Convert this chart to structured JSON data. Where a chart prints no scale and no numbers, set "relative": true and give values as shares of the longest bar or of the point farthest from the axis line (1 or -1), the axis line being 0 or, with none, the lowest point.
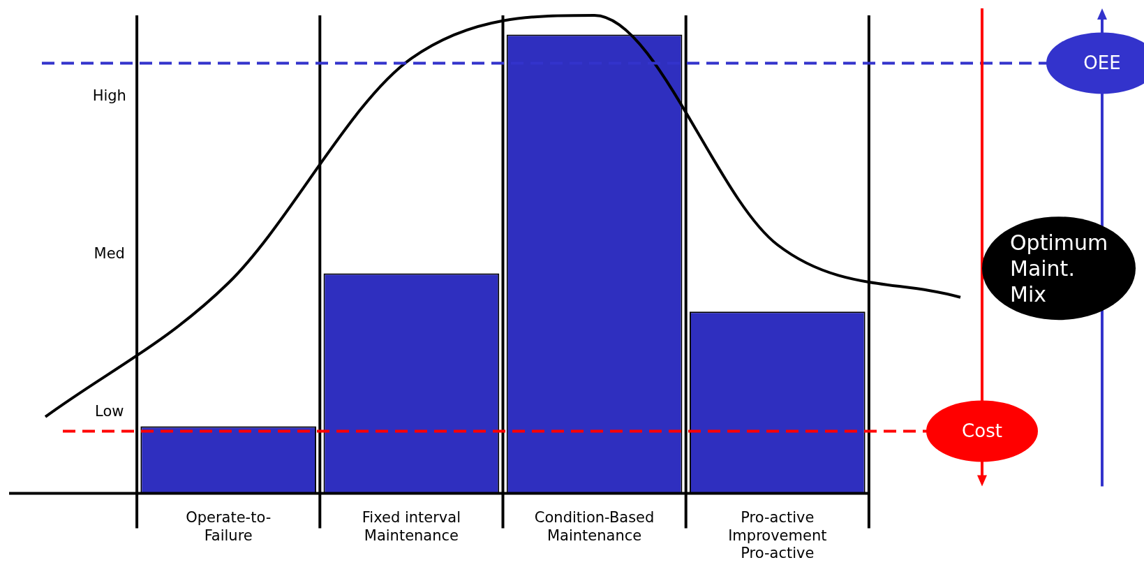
{
  "chart_data": {
    "type": "bar",
    "relative": true,
    "grid": "x",
    "categories": [
      null,
      "Operate-to- Failure",
      "Fixed interval Maintenance",
      "Condition-Based Maintenance",
      "Pro-active Improvement Pro-active",
      null
    ],
    "series": [
      {
        "type": "bar",
        "color": "#2f2fbf",
        "values": [
          null,
          0.14,
          0.46,
          0.96,
          0.38,
          null
        ]
      },
      {
        "type": "line",
        "color": "#000000",
        "values": [
          0.16,
          0.44,
          0.91,
          1.0,
          0.52,
          0.41
        ]
      }
    ],
    "ref_lines": [
      {
        "axis": "y",
        "value": 0.9,
        "label": "OEE",
        "color": "#3333cc",
        "line_style": "dashed"
      },
      {
        "axis": "y",
        "value": 0.13,
        "label": "Cost",
        "color": "#ff0000",
        "line_style": "dashed"
      }
    ],
    "annotations": [
      "High",
      "Med",
      "Low",
      "Optimum Maint. Mix"
    ]
  }
}
